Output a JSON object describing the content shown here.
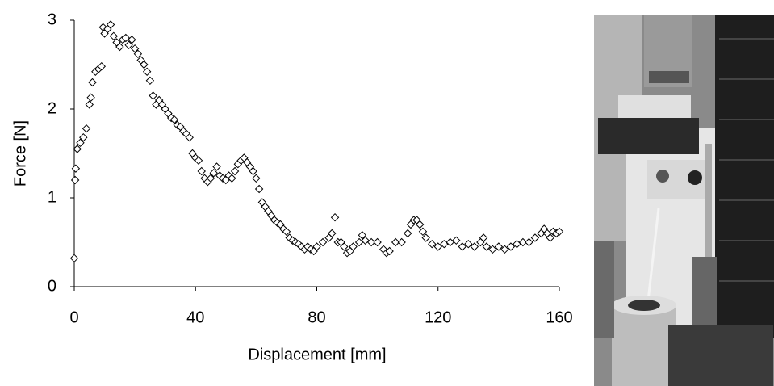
{
  "chart_data": {
    "type": "scatter",
    "x_label": "Displacement [mm]",
    "y_label": "Force [N]",
    "x": [
      0,
      0.3,
      0.5,
      1,
      2,
      3,
      4,
      5,
      5.5,
      6,
      7,
      8,
      9,
      9.5,
      10,
      11,
      12,
      13,
      14,
      15,
      16,
      17,
      18,
      19,
      20,
      21,
      22,
      23,
      24,
      25,
      26,
      27,
      28,
      29,
      30,
      31,
      32,
      33,
      34,
      35,
      36,
      37,
      38,
      39,
      40,
      41,
      42,
      43,
      44,
      45,
      46,
      47,
      48,
      49,
      50,
      51,
      52,
      53,
      54,
      55,
      56,
      57,
      58,
      59,
      60,
      61,
      62,
      63,
      64,
      65,
      66,
      67,
      68,
      69,
      70,
      71,
      72,
      73,
      74,
      75,
      76,
      77,
      78,
      79,
      80,
      82,
      84,
      85,
      86,
      87,
      88,
      89,
      90,
      91,
      92,
      94,
      95,
      96,
      98,
      100,
      102,
      103,
      104,
      106,
      108,
      110,
      111,
      112,
      113,
      114,
      115,
      116,
      118,
      120,
      122,
      124,
      126,
      128,
      130,
      132,
      134,
      135,
      136,
      138,
      140,
      142,
      144,
      146,
      148,
      150,
      152,
      154,
      155,
      156,
      157,
      158,
      159,
      160
    ],
    "y": [
      0.32,
      1.2,
      1.33,
      1.55,
      1.62,
      1.68,
      1.78,
      2.05,
      2.13,
      2.3,
      2.42,
      2.45,
      2.48,
      2.92,
      2.85,
      2.9,
      2.95,
      2.82,
      2.75,
      2.7,
      2.78,
      2.8,
      2.72,
      2.78,
      2.68,
      2.62,
      2.55,
      2.5,
      2.42,
      2.32,
      2.15,
      2.05,
      2.1,
      2.05,
      2.0,
      1.95,
      1.9,
      1.88,
      1.82,
      1.8,
      1.75,
      1.72,
      1.68,
      1.5,
      1.45,
      1.42,
      1.3,
      1.22,
      1.18,
      1.22,
      1.28,
      1.35,
      1.25,
      1.22,
      1.2,
      1.25,
      1.22,
      1.3,
      1.38,
      1.42,
      1.45,
      1.4,
      1.35,
      1.3,
      1.22,
      1.1,
      0.95,
      0.9,
      0.85,
      0.8,
      0.75,
      0.72,
      0.7,
      0.65,
      0.62,
      0.55,
      0.52,
      0.5,
      0.48,
      0.45,
      0.42,
      0.45,
      0.42,
      0.4,
      0.45,
      0.5,
      0.55,
      0.6,
      0.78,
      0.5,
      0.5,
      0.45,
      0.38,
      0.4,
      0.45,
      0.5,
      0.58,
      0.52,
      0.5,
      0.5,
      0.42,
      0.38,
      0.4,
      0.5,
      0.5,
      0.6,
      0.7,
      0.75,
      0.75,
      0.7,
      0.62,
      0.55,
      0.48,
      0.45,
      0.48,
      0.5,
      0.52,
      0.45,
      0.48,
      0.45,
      0.5,
      0.55,
      0.45,
      0.42,
      0.45,
      0.42,
      0.45,
      0.48,
      0.5,
      0.5,
      0.55,
      0.6,
      0.65,
      0.6,
      0.55,
      0.62,
      0.6,
      0.62
    ],
    "color": "#000000",
    "xlim": [
      0,
      160
    ],
    "xticks": [
      0,
      40,
      80,
      120,
      160
    ],
    "ylim": [
      0,
      3
    ],
    "yticks": [
      0,
      1,
      2,
      3
    ],
    "grid": false
  }
}
